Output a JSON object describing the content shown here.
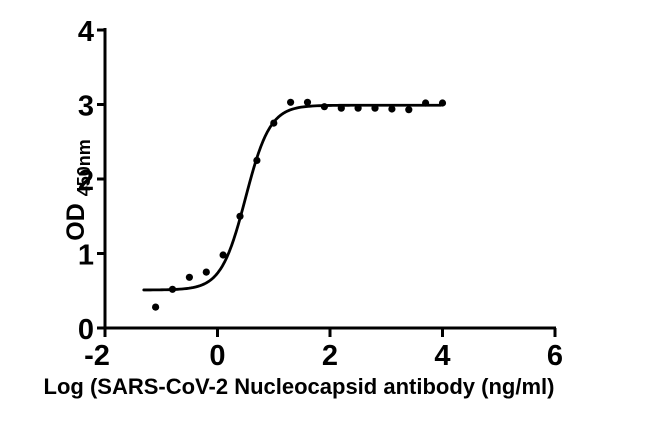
{
  "figure": {
    "background": "#ffffff",
    "foreground": "#000000"
  },
  "chart_data": {
    "type": "scatter",
    "title": "",
    "xlabel": "Log (SARS-CoV-2 Nucleocapsid antibody (ng/ml)",
    "ylabel": {
      "main": "OD",
      "sub": "450nm"
    },
    "xlim": [
      -2,
      6
    ],
    "ylim": [
      0,
      4
    ],
    "x_ticks": [
      -2,
      0,
      2,
      4,
      6
    ],
    "y_ticks": [
      0,
      1,
      2,
      3,
      4
    ],
    "grid": false,
    "legend": "none",
    "marker_color": "#000000",
    "curve_color": "#000000",
    "points": [
      {
        "x": -1.1,
        "y": 0.28
      },
      {
        "x": -0.8,
        "y": 0.52
      },
      {
        "x": -0.5,
        "y": 0.68
      },
      {
        "x": -0.2,
        "y": 0.75
      },
      {
        "x": 0.1,
        "y": 0.98
      },
      {
        "x": 0.4,
        "y": 1.5
      },
      {
        "x": 0.7,
        "y": 2.25
      },
      {
        "x": 1.0,
        "y": 2.75
      },
      {
        "x": 1.3,
        "y": 3.03
      },
      {
        "x": 1.6,
        "y": 3.03
      },
      {
        "x": 1.9,
        "y": 2.97
      },
      {
        "x": 2.2,
        "y": 2.95
      },
      {
        "x": 2.5,
        "y": 2.95
      },
      {
        "x": 2.8,
        "y": 2.95
      },
      {
        "x": 3.1,
        "y": 2.94
      },
      {
        "x": 3.4,
        "y": 2.93
      },
      {
        "x": 3.7,
        "y": 3.02
      },
      {
        "x": 4.0,
        "y": 3.02
      }
    ],
    "fit_curve": {
      "model": "4PL-sigmoid",
      "bottom": 0.51,
      "top": 2.99,
      "logEC50": 0.5,
      "hill": 2.0,
      "x_start": -1.31,
      "x_end": 4.0
    }
  }
}
